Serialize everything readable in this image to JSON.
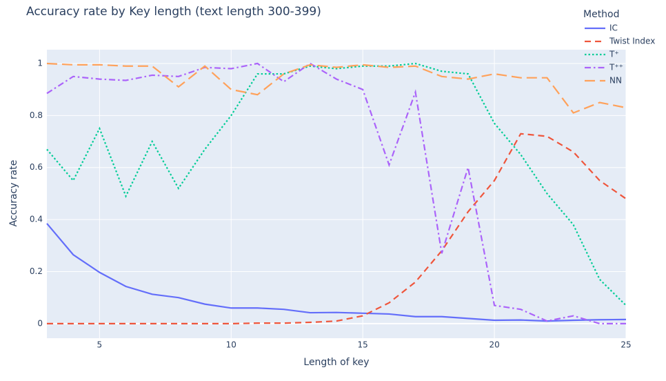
{
  "chart_data": {
    "type": "line",
    "title": "Accuracy rate by Key length (text length 300-399)",
    "x_label": "Length of key",
    "y_label": "Accuracy rate",
    "legend_title": "Method",
    "legend_position": "top-right-outside",
    "x": [
      3,
      4,
      5,
      6,
      7,
      8,
      9,
      10,
      11,
      12,
      13,
      14,
      15,
      16,
      17,
      18,
      19,
      20,
      21,
      22,
      23,
      24,
      25
    ],
    "series": [
      {
        "name": "IC",
        "color": "#636efa",
        "dash": "solid",
        "values": [
          0.385,
          0.265,
          0.197,
          0.143,
          0.113,
          0.1,
          0.075,
          0.06,
          0.06,
          0.055,
          0.042,
          0.043,
          0.04,
          0.037,
          0.027,
          0.027,
          0.02,
          0.013,
          0.014,
          0.01,
          0.013,
          0.015,
          0.016
        ]
      },
      {
        "name": "Twist Index",
        "color": "#EF553B",
        "dash": "dash",
        "values": [
          0,
          0,
          0,
          0,
          0,
          0,
          0,
          0,
          0.002,
          0.002,
          0.005,
          0.01,
          0.03,
          0.08,
          0.16,
          0.28,
          0.43,
          0.55,
          0.73,
          0.72,
          0.66,
          0.55,
          0.48
        ]
      },
      {
        "name": "T⁺",
        "color": "#00cc96",
        "dash": "dot",
        "values": [
          0.67,
          0.55,
          0.75,
          0.49,
          0.7,
          0.52,
          0.67,
          0.8,
          0.96,
          0.96,
          0.99,
          0.98,
          0.99,
          0.99,
          1.0,
          0.97,
          0.96,
          0.77,
          0.65,
          0.5,
          0.38,
          0.17,
          0.07
        ]
      },
      {
        "name": "T⁺⁺",
        "color": "#ab63fa",
        "dash": "dashdot",
        "values": [
          0.885,
          0.95,
          0.94,
          0.935,
          0.955,
          0.95,
          0.985,
          0.98,
          1.0,
          0.93,
          1.0,
          0.94,
          0.9,
          0.61,
          0.89,
          0.27,
          0.6,
          0.07,
          0.055,
          0.01,
          0.03,
          0.0,
          0.0
        ]
      },
      {
        "name": "NN",
        "color": "#FFA15A",
        "dash": "longdash",
        "values": [
          1.0,
          0.995,
          0.995,
          0.99,
          0.99,
          0.91,
          0.99,
          0.9,
          0.88,
          0.96,
          0.995,
          0.985,
          0.995,
          0.985,
          0.99,
          0.95,
          0.94,
          0.96,
          0.945,
          0.945,
          0.81,
          0.85,
          0.83
        ]
      }
    ],
    "xlim": [
      3,
      25
    ],
    "xticks": [
      5,
      10,
      15,
      20,
      25
    ],
    "ylim": [
      -0.056,
      1.053
    ],
    "yticks": [
      0,
      0.2,
      0.4,
      0.6,
      0.8,
      1
    ],
    "grid": true,
    "plot_background": "#E5ECF6"
  }
}
